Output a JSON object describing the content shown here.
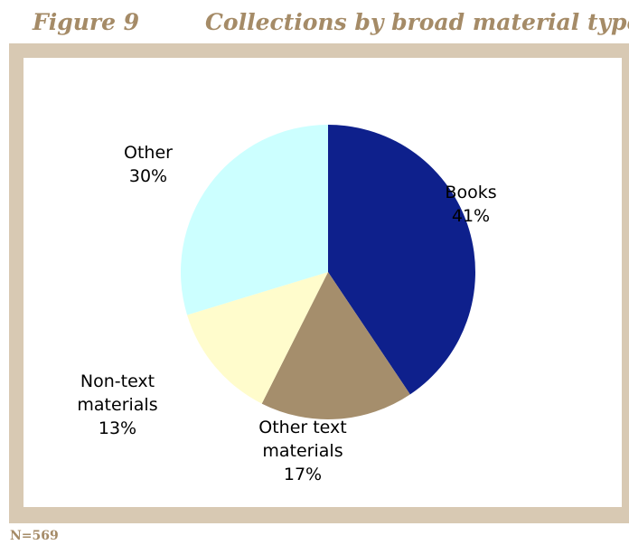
{
  "figure": {
    "number": "Figure 9",
    "title": "Collections by broad material type"
  },
  "chart_data": {
    "type": "pie",
    "title": "Collections by broad material type",
    "slices": [
      {
        "label_lines": [
          "Books"
        ],
        "value": 41,
        "value_label": "41%",
        "color": "#0e208c"
      },
      {
        "label_lines": [
          "Other text",
          "materials"
        ],
        "value": 17,
        "value_label": "17%",
        "color": "#a58e6c"
      },
      {
        "label_lines": [
          "Non-text",
          "materials"
        ],
        "value": 13,
        "value_label": "13%",
        "color": "#fffccc"
      },
      {
        "label_lines": [
          "Other"
        ],
        "value": 30,
        "value_label": "30%",
        "color": "#ccffff"
      }
    ],
    "start": "12 o'clock",
    "direction": "clockwise",
    "legend": "none"
  },
  "footnote": "N=569"
}
